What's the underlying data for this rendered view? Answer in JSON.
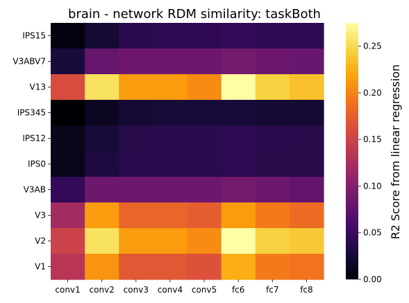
{
  "chart_data": {
    "type": "heatmap",
    "title": "brain - network RDM similarity: taskBoth",
    "x_categories": [
      "conv1",
      "conv2",
      "conv3",
      "conv4",
      "conv5",
      "fc6",
      "fc7",
      "fc8"
    ],
    "y_categories": [
      "IPS15",
      "V3ABV7",
      "V13",
      "IPS345",
      "IPS12",
      "IPS0",
      "V3AB",
      "V3",
      "V2",
      "V1"
    ],
    "values": [
      [
        0.005,
        0.025,
        0.04,
        0.042,
        0.043,
        0.045,
        0.042,
        0.042
      ],
      [
        0.03,
        0.08,
        0.085,
        0.085,
        0.085,
        0.09,
        0.085,
        0.082
      ],
      [
        0.16,
        0.255,
        0.215,
        0.215,
        0.205,
        0.275,
        0.245,
        0.235
      ],
      [
        0.0,
        0.015,
        0.025,
        0.028,
        0.028,
        0.028,
        0.025,
        0.025
      ],
      [
        0.012,
        0.028,
        0.038,
        0.04,
        0.04,
        0.042,
        0.04,
        0.038
      ],
      [
        0.012,
        0.032,
        0.04,
        0.04,
        0.04,
        0.042,
        0.038,
        0.038
      ],
      [
        0.045,
        0.085,
        0.085,
        0.085,
        0.085,
        0.09,
        0.085,
        0.078
      ],
      [
        0.12,
        0.215,
        0.18,
        0.18,
        0.175,
        0.215,
        0.195,
        0.185
      ],
      [
        0.15,
        0.255,
        0.215,
        0.215,
        0.205,
        0.275,
        0.245,
        0.24
      ],
      [
        0.135,
        0.21,
        0.17,
        0.17,
        0.165,
        0.225,
        0.195,
        0.19
      ]
    ],
    "colormap": "inferno",
    "vmin": 0.0,
    "vmax": 0.275,
    "colorbar": {
      "label": "R2 Score from linear regression",
      "ticks": [
        "0.00",
        "0.05",
        "0.10",
        "0.15",
        "0.20",
        "0.25"
      ],
      "tick_values": [
        0.0,
        0.05,
        0.1,
        0.15,
        0.2,
        0.25
      ]
    },
    "grid": false
  }
}
